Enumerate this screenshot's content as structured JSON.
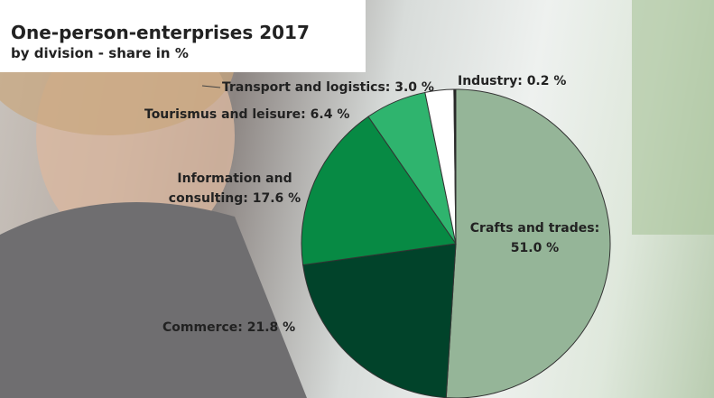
{
  "chart_data": {
    "type": "pie",
    "title": "One-person-enterprises 2017",
    "subtitle": "by division - share in %",
    "values": [
      51.0,
      21.8,
      17.6,
      6.4,
      3.0,
      0.2
    ],
    "value_labels": [
      "Crafts and trades: 51.0 %",
      "Commerce: 21.8 %",
      "Information and consulting: 17.6 %",
      "Tourismus and leisure: 6.4 %",
      "Transport and logistics: 3.0 %",
      "Industry: 0.2 %"
    ],
    "colors": [
      "#95b598",
      "#01432a",
      "#078a44",
      "#2fb46e",
      "#ffffff",
      "#1c1c1c"
    ]
  }
}
